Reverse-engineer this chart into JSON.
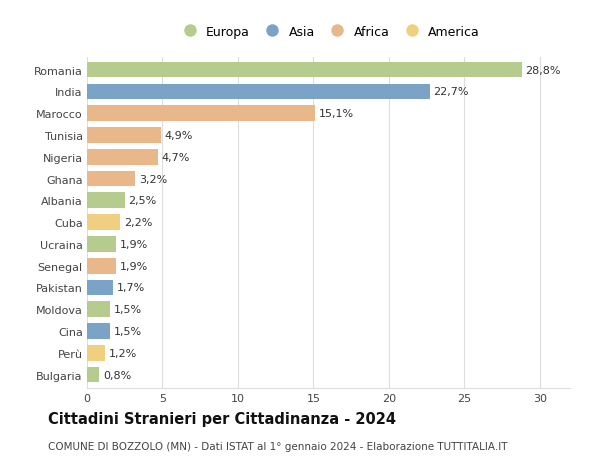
{
  "countries": [
    "Romania",
    "India",
    "Marocco",
    "Tunisia",
    "Nigeria",
    "Ghana",
    "Albania",
    "Cuba",
    "Ucraina",
    "Senegal",
    "Pakistan",
    "Moldova",
    "Cina",
    "Perù",
    "Bulgaria"
  ],
  "values": [
    28.8,
    22.7,
    15.1,
    4.9,
    4.7,
    3.2,
    2.5,
    2.2,
    1.9,
    1.9,
    1.7,
    1.5,
    1.5,
    1.2,
    0.8
  ],
  "labels": [
    "28,8%",
    "22,7%",
    "15,1%",
    "4,9%",
    "4,7%",
    "3,2%",
    "2,5%",
    "2,2%",
    "1,9%",
    "1,9%",
    "1,7%",
    "1,5%",
    "1,5%",
    "1,2%",
    "0,8%"
  ],
  "continents": [
    "Europa",
    "Asia",
    "Africa",
    "Africa",
    "Africa",
    "Africa",
    "Europa",
    "America",
    "Europa",
    "Africa",
    "Asia",
    "Europa",
    "Asia",
    "America",
    "Europa"
  ],
  "continent_colors": {
    "Europa": "#b5cc8e",
    "Asia": "#7ba3c8",
    "Africa": "#e8b88a",
    "America": "#f0d080"
  },
  "legend_order": [
    "Europa",
    "Asia",
    "Africa",
    "America"
  ],
  "title": "Cittadini Stranieri per Cittadinanza - 2024",
  "subtitle": "COMUNE DI BOZZOLO (MN) - Dati ISTAT al 1° gennaio 2024 - Elaborazione TUTTITALIA.IT",
  "xlim": [
    0,
    32
  ],
  "xticks": [
    0,
    5,
    10,
    15,
    20,
    25,
    30
  ],
  "background_color": "#ffffff",
  "grid_color": "#dddddd",
  "bar_height": 0.72,
  "title_fontsize": 10.5,
  "subtitle_fontsize": 7.5,
  "tick_fontsize": 8,
  "label_fontsize": 8
}
